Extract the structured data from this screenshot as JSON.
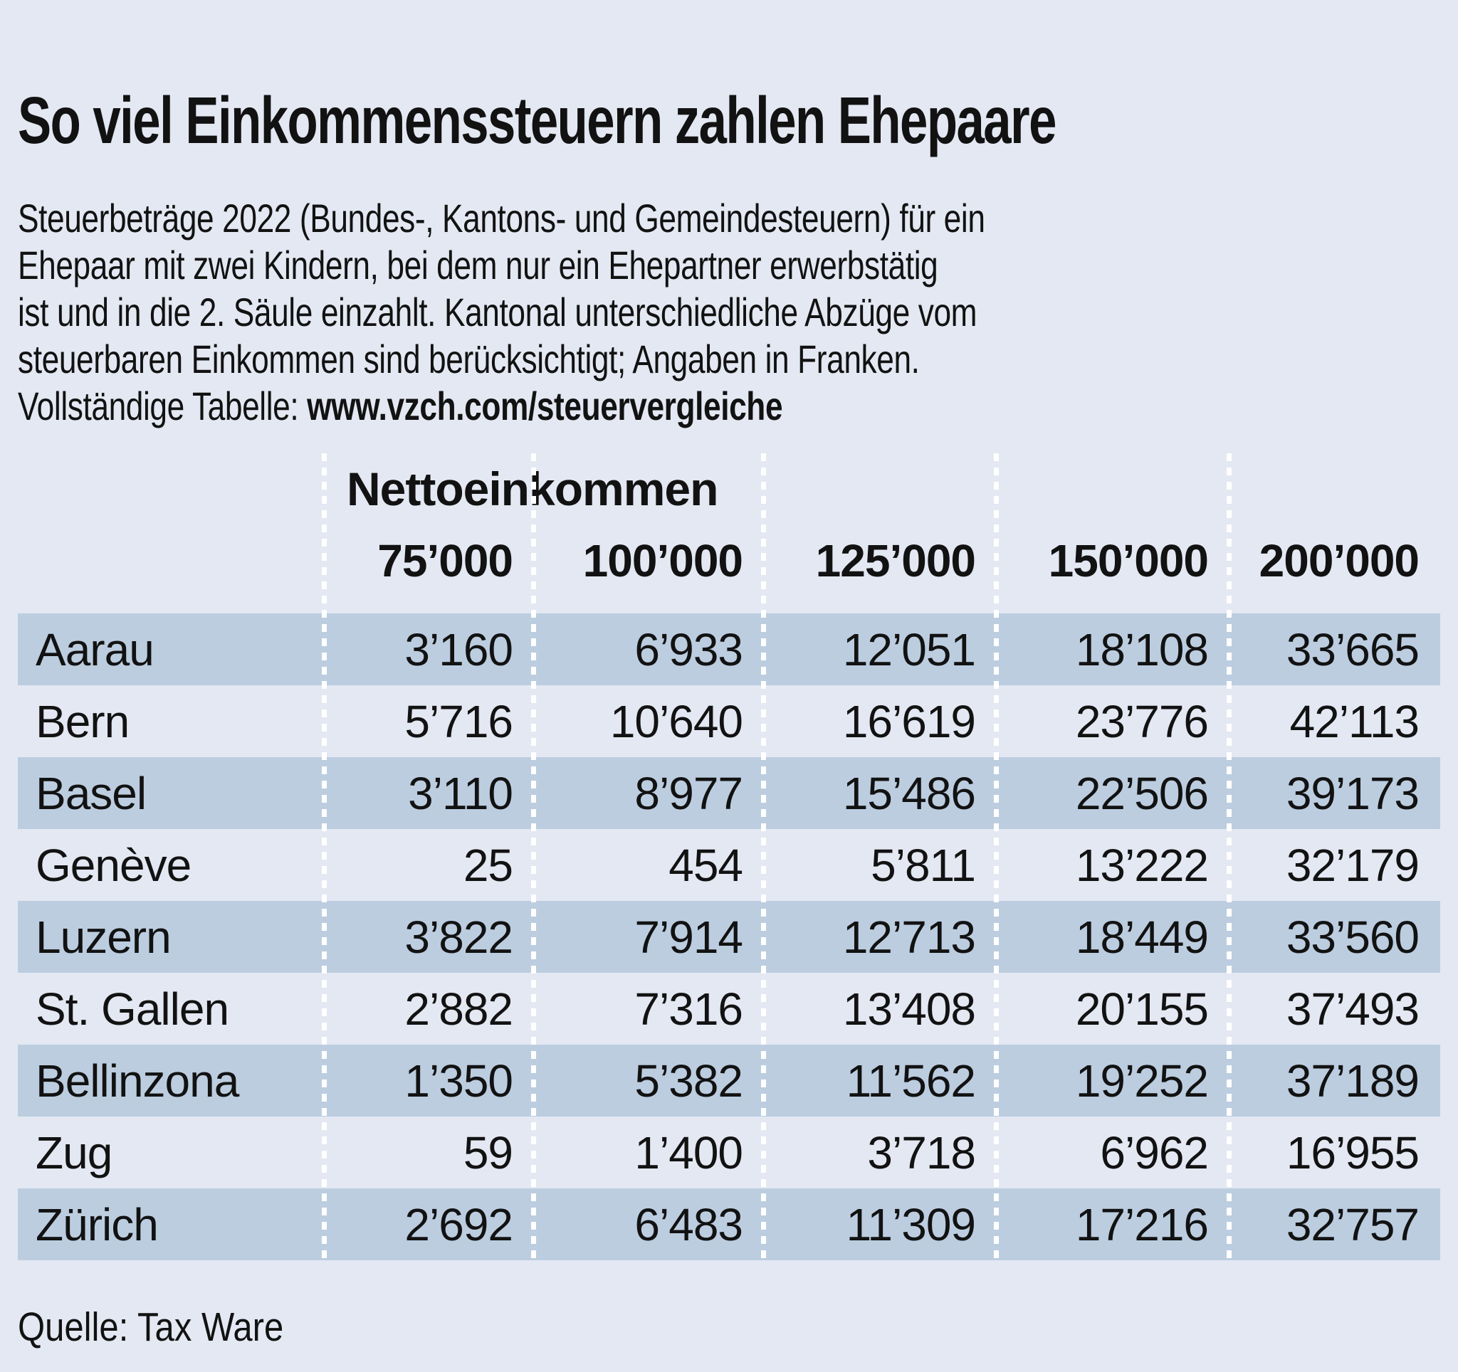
{
  "title": "So viel Einkommenssteuern zahlen Ehepaare",
  "description": {
    "lines": [
      "Steuerbeträge 2022 (Bundes-, Kantons- und Gemeindesteuern) für ein",
      "Ehepaar mit zwei Kindern, bei dem nur ein Ehepartner erwerbstätig",
      "ist und in die 2. Säule einzahlt. Kantonal unterschiedliche Abzüge vom",
      "steuerbaren Einkommen sind berücksichtigt; Angaben in Franken.",
      "Vollständige Tabelle: "
    ],
    "link": "www.vzch.com/steuervergleiche"
  },
  "table": {
    "group_header": "Nettoeinkommen",
    "columns": [
      "75’000",
      "100’000",
      "125’000",
      "150’000",
      "200’000"
    ],
    "rows": [
      {
        "city": "Aarau",
        "values": [
          "3’160",
          "6’933",
          "12’051",
          "18’108",
          "33’665"
        ]
      },
      {
        "city": "Bern",
        "values": [
          "5’716",
          "10’640",
          "16’619",
          "23’776",
          "42’113"
        ]
      },
      {
        "city": "Basel",
        "values": [
          "3’110",
          "8’977",
          "15’486",
          "22’506",
          "39’173"
        ]
      },
      {
        "city": "Genève",
        "values": [
          "25",
          "454",
          "5’811",
          "13’222",
          "32’179"
        ]
      },
      {
        "city": "Luzern",
        "values": [
          "3’822",
          "7’914",
          "12’713",
          "18’449",
          "33’560"
        ]
      },
      {
        "city": "St. Gallen",
        "values": [
          "2’882",
          "7’316",
          "13’408",
          "20’155",
          "37’493"
        ]
      },
      {
        "city": "Bellinzona",
        "values": [
          "1’350",
          "5’382",
          "11’562",
          "19’252",
          "37’189"
        ]
      },
      {
        "city": "Zug",
        "values": [
          "59",
          "1’400",
          "3’718",
          "6’962",
          "16’955"
        ]
      },
      {
        "city": "Zürich",
        "values": [
          "2’692",
          "6’483",
          "11’309",
          "17’216",
          "32’757"
        ]
      }
    ]
  },
  "source": "Quelle: Tax Ware",
  "colors": {
    "background": "#e3e8f2",
    "row_dark": "#bccde0",
    "dot_line": "#ffffff",
    "text": "#121212"
  },
  "chart_data": {
    "type": "table",
    "title": "So viel Einkommenssteuern zahlen Ehepaare",
    "subtitle": "Steuerbeträge 2022 (Bundes-, Kantons- und Gemeindesteuern) für ein Ehepaar mit zwei Kindern, bei dem nur ein Ehepartner erwerbstätig ist und in die 2. Säule einzahlt. Kantonal unterschiedliche Abzüge vom steuerbaren Einkommen sind berücksichtigt; Angaben in Franken. Vollständige Tabelle: www.vzch.com/steuervergleiche",
    "column_group_label": "Nettoeinkommen",
    "columns": [
      75000,
      100000,
      125000,
      150000,
      200000
    ],
    "rows": [
      {
        "city": "Aarau",
        "values": [
          3160,
          6933,
          12051,
          18108,
          33665
        ]
      },
      {
        "city": "Bern",
        "values": [
          5716,
          10640,
          16619,
          23776,
          42113
        ]
      },
      {
        "city": "Basel",
        "values": [
          3110,
          8977,
          15486,
          22506,
          39173
        ]
      },
      {
        "city": "Genève",
        "values": [
          25,
          454,
          5811,
          13222,
          32179
        ]
      },
      {
        "city": "Luzern",
        "values": [
          3822,
          7914,
          12713,
          18449,
          33560
        ]
      },
      {
        "city": "St. Gallen",
        "values": [
          2882,
          7316,
          13408,
          20155,
          37493
        ]
      },
      {
        "city": "Bellinzona",
        "values": [
          1350,
          5382,
          11562,
          19252,
          37189
        ]
      },
      {
        "city": "Zug",
        "values": [
          59,
          1400,
          3718,
          6962,
          16955
        ]
      },
      {
        "city": "Zürich",
        "values": [
          2692,
          6483,
          11309,
          17216,
          32757
        ]
      }
    ],
    "source": "Quelle: Tax Ware",
    "units": "CHF (Franken)"
  }
}
